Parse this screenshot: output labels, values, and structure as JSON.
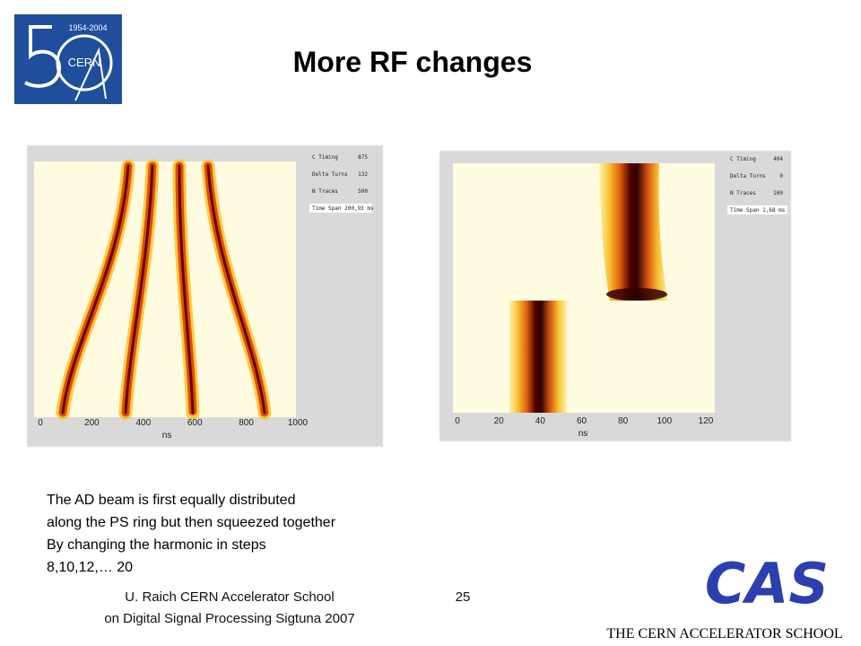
{
  "header": {
    "title": "More RF changes"
  },
  "logo": {
    "years": "1954-2004",
    "name": "CERN"
  },
  "figures": [
    {
      "x_ticks": [
        0,
        200,
        400,
        600,
        800,
        1000
      ],
      "x_label": "ns",
      "info": [
        [
          "C Timing",
          "875"
        ],
        [
          "Delta Turns",
          "132"
        ],
        [
          "N Traces",
          "500"
        ],
        "Time Span 200,93 ms"
      ]
    },
    {
      "x_ticks": [
        0,
        20,
        40,
        60,
        80,
        100,
        120
      ],
      "x_label": "ns",
      "info": [
        [
          "C Timing",
          "404"
        ],
        [
          "Delta Turns",
          "0"
        ],
        [
          "N Traces",
          "100"
        ],
        "Time Span 1,68 ms"
      ]
    }
  ],
  "body": {
    "lines": [
      "The AD beam is first equally distributed",
      "along the PS ring but then squeezed together",
      "By changing the harmonic in steps",
      "8,10,12,… 20"
    ]
  },
  "footer": {
    "credit": [
      "U. Raich  CERN Accelerator School",
      "on Digital Signal Processing  Sigtuna 2007"
    ],
    "page": "25"
  },
  "cas_logo": {
    "mark": "CAS",
    "name": "THE CERN ACCELERATOR SCHOOL"
  }
}
